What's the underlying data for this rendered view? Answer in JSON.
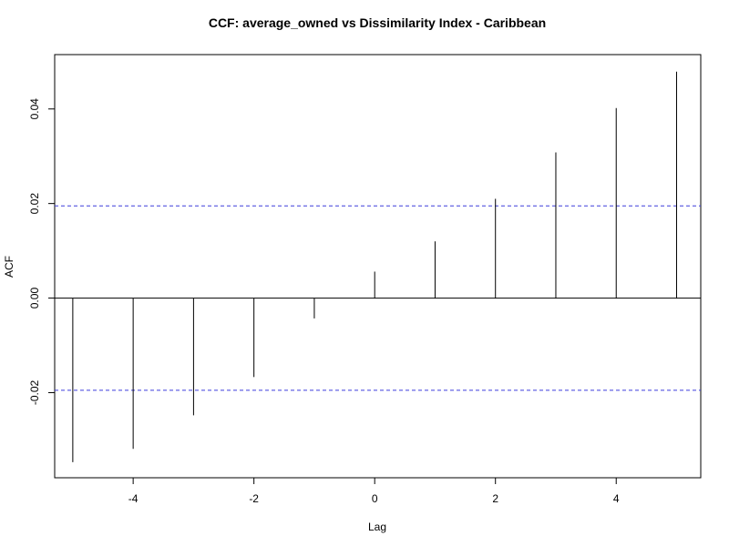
{
  "chart_data": {
    "type": "ccf",
    "title": "CCF: average_owned vs Dissimilarity Index - Caribbean",
    "xlabel": "Lag",
    "ylabel": "ACF",
    "xlim": [
      -5.3,
      5.4
    ],
    "ylim": [
      -0.038,
      0.0515
    ],
    "x_ticks": [
      -4,
      -2,
      0,
      2,
      4
    ],
    "y_ticks": [
      -0.02,
      0.0,
      0.02,
      0.04
    ],
    "x_tick_labels": [
      "-4",
      "-2",
      "0",
      "2",
      "4"
    ],
    "y_tick_labels": [
      "-0.02",
      "0.00",
      "0.02",
      "0.04"
    ],
    "lags": [
      -5,
      -4,
      -3,
      -2,
      -1,
      0,
      1,
      2,
      3,
      4,
      5
    ],
    "values": [
      -0.0347,
      -0.0319,
      -0.0248,
      -0.0167,
      -0.0043,
      0.0056,
      0.012,
      0.021,
      0.0308,
      0.0402,
      0.0479
    ],
    "confidence_bound": 0.0195,
    "colors": {
      "spikes": "#000000",
      "bounds": "#3c3cdc",
      "zero_line": "#000000",
      "box": "#000000"
    },
    "grid": false
  }
}
